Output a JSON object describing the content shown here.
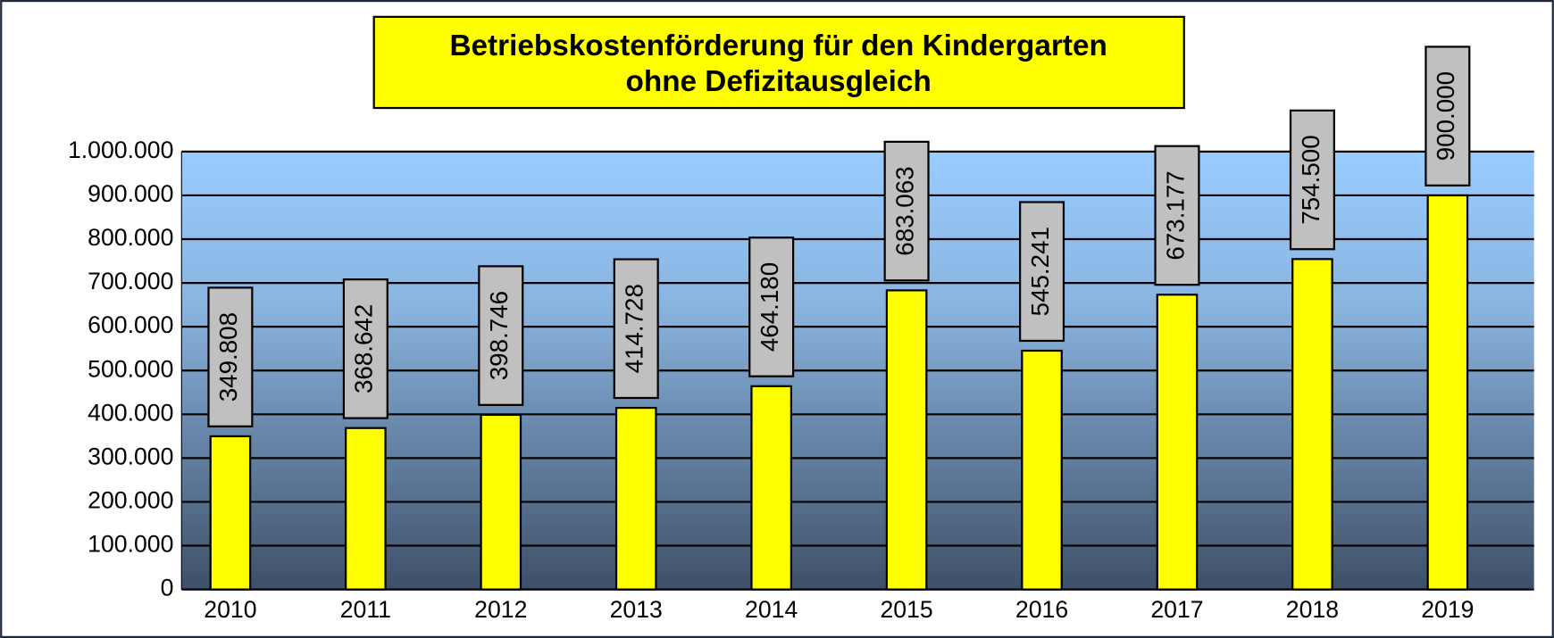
{
  "chart_data": {
    "type": "bar",
    "title": "Betriebskostenförderung für den Kindergarten ohne Defizitausgleich",
    "categories": [
      "2010",
      "2011",
      "2012",
      "2013",
      "2014",
      "2015",
      "2016",
      "2017",
      "2018",
      "2019"
    ],
    "values": [
      349808,
      368642,
      398746,
      414728,
      464180,
      683063,
      545241,
      673177,
      754500,
      900000
    ],
    "value_labels": [
      "349.808",
      "368.642",
      "398.746",
      "414.728",
      "464.180",
      "683.063",
      "545.241",
      "673.177",
      "754.500",
      "900.000"
    ],
    "color": "#ffff00",
    "ylim": [
      0,
      1000000
    ],
    "yticks": [
      0,
      {
        "value": 100000,
        "label": "100.000"
      },
      {
        "value": 200000,
        "label": "200.000"
      },
      {
        "value": 300000,
        "label": "300.000"
      },
      {
        "value": 400000,
        "label": "400.000"
      },
      {
        "value": 500000,
        "label": "500.000"
      },
      {
        "value": 600000,
        "label": "600.000"
      },
      {
        "value": 700000,
        "label": "700.000"
      },
      {
        "value": 800000,
        "label": "800.000"
      },
      {
        "value": 900000,
        "label": "900.000"
      },
      {
        "value": 1000000,
        "label": "1.000.000"
      }
    ],
    "grid": true
  }
}
